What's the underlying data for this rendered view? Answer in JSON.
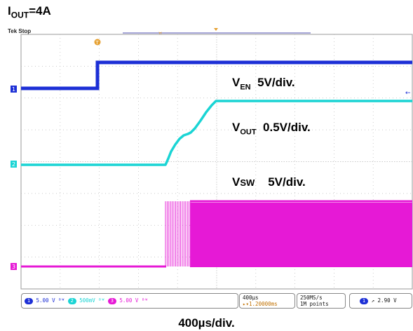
{
  "header": {
    "title_main": "I",
    "title_sub": "OUT",
    "title_value": "=4A"
  },
  "scope": {
    "status_text": "Tek Stop",
    "trigger_marker": "T",
    "channel_markers": [
      "1",
      "2",
      "3"
    ],
    "trigger_arrow": "←"
  },
  "labels": {
    "ven_main": "V",
    "ven_sub": "EN",
    "ven_scale": "5V/div.",
    "vout_main": "V",
    "vout_sub": "OUT",
    "vout_scale": "0.5V/div.",
    "vsw_main": "V",
    "vsw_sub": "SW",
    "vsw_scale": "5V/div."
  },
  "statusbar": {
    "ch1_num": "1",
    "ch1_scale": "5.00 V",
    "ch2_num": "2",
    "ch2_scale": "500mV",
    "ch3_num": "3",
    "ch3_scale": "5.00 V",
    "timebase": "400µs",
    "delay": "▸▾1.20000ms",
    "sample_rate": "250MS/s",
    "record_length": "1M points",
    "trig_ch": "1",
    "trig_slope": "↗",
    "trig_level": "2.90 V"
  },
  "footer": {
    "timescale": "400µs/div."
  },
  "colors": {
    "ch1": "#1c2fd6",
    "ch2": "#1ad4d4",
    "ch3": "#e619d6",
    "grid": "#b8b8b8"
  }
}
